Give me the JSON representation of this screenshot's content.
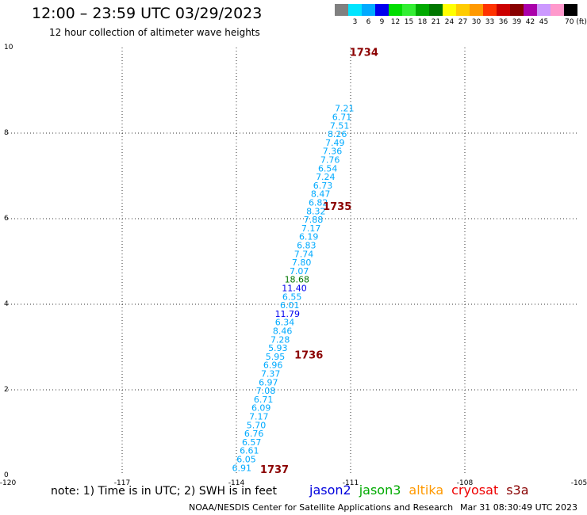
{
  "header": {
    "title": "12:00 – 23:59 UTC 03/29/2023",
    "subtitle": "12 hour collection of altimeter wave heights"
  },
  "legend": {
    "unit": "70 (ft)",
    "bins": [
      {
        "label": "",
        "color": "#808080"
      },
      {
        "label": "3",
        "color": "#00e5ff"
      },
      {
        "label": "6",
        "color": "#00aaff"
      },
      {
        "label": "9",
        "color": "#0000ee"
      },
      {
        "label": "12",
        "color": "#00dd00"
      },
      {
        "label": "15",
        "color": "#33ee33"
      },
      {
        "label": "18",
        "color": "#00aa00"
      },
      {
        "label": "21",
        "color": "#007700"
      },
      {
        "label": "24",
        "color": "#ffff00"
      },
      {
        "label": "27",
        "color": "#ffcc00"
      },
      {
        "label": "30",
        "color": "#ff9900"
      },
      {
        "label": "33",
        "color": "#ff3300"
      },
      {
        "label": "36",
        "color": "#cc0000"
      },
      {
        "label": "39",
        "color": "#880000"
      },
      {
        "label": "42",
        "color": "#aa00aa"
      },
      {
        "label": "45",
        "color": "#cc99ff"
      },
      {
        "label": "",
        "color": "#ff99cc"
      },
      {
        "label": "",
        "color": "#000000"
      }
    ]
  },
  "chart_data": {
    "type": "scatter",
    "title": "12:00 – 23:59 UTC 03/29/2023",
    "xlim": [
      -120,
      -105
    ],
    "ylim": [
      0,
      10
    ],
    "xticks": [
      "-120",
      "-117",
      "-114",
      "-111",
      "-108",
      "-105"
    ],
    "yticks": [
      "0",
      "2",
      "4",
      "6",
      "8",
      "10"
    ],
    "grid": true,
    "colors": {
      "cyan": "#00aaff",
      "blue": "#0000ee",
      "green": "#007700",
      "time": "#8b0000"
    },
    "points": [
      {
        "lon": -113.86,
        "lat": 0.18,
        "v": "6.91",
        "c": "cyan"
      },
      {
        "lon": -113.74,
        "lat": 0.38,
        "v": "6.05",
        "c": "cyan"
      },
      {
        "lon": -113.66,
        "lat": 0.58,
        "v": "6.61",
        "c": "cyan"
      },
      {
        "lon": -113.6,
        "lat": 0.78,
        "v": "6.57",
        "c": "cyan"
      },
      {
        "lon": -113.54,
        "lat": 0.98,
        "v": "6.76",
        "c": "cyan"
      },
      {
        "lon": -113.48,
        "lat": 1.18,
        "v": "5.70",
        "c": "cyan"
      },
      {
        "lon": -113.41,
        "lat": 1.38,
        "v": "7.17",
        "c": "cyan"
      },
      {
        "lon": -113.35,
        "lat": 1.58,
        "v": "6.09",
        "c": "cyan"
      },
      {
        "lon": -113.29,
        "lat": 1.78,
        "v": "6.71",
        "c": "cyan"
      },
      {
        "lon": -113.23,
        "lat": 1.98,
        "v": "7.08",
        "c": "cyan"
      },
      {
        "lon": -113.16,
        "lat": 2.18,
        "v": "6.97",
        "c": "cyan"
      },
      {
        "lon": -113.1,
        "lat": 2.38,
        "v": "7.37",
        "c": "cyan"
      },
      {
        "lon": -113.04,
        "lat": 2.58,
        "v": "6.96",
        "c": "cyan"
      },
      {
        "lon": -112.98,
        "lat": 2.78,
        "v": "5.95",
        "c": "cyan"
      },
      {
        "lon": -112.91,
        "lat": 2.98,
        "v": "5.93",
        "c": "cyan"
      },
      {
        "lon": -112.85,
        "lat": 3.18,
        "v": "7.28",
        "c": "cyan"
      },
      {
        "lon": -112.79,
        "lat": 3.38,
        "v": "8.46",
        "c": "cyan"
      },
      {
        "lon": -112.73,
        "lat": 3.58,
        "v": "6.34",
        "c": "cyan"
      },
      {
        "lon": -112.66,
        "lat": 3.78,
        "v": "11.79",
        "c": "blue"
      },
      {
        "lon": -112.6,
        "lat": 3.98,
        "v": "6.01",
        "c": "cyan"
      },
      {
        "lon": -112.54,
        "lat": 4.18,
        "v": "6.55",
        "c": "cyan"
      },
      {
        "lon": -112.48,
        "lat": 4.38,
        "v": "11.40",
        "c": "blue"
      },
      {
        "lon": -112.41,
        "lat": 4.58,
        "v": "18.68",
        "c": "green"
      },
      {
        "lon": -112.35,
        "lat": 4.78,
        "v": "7.07",
        "c": "cyan"
      },
      {
        "lon": -112.29,
        "lat": 4.98,
        "v": "7.80",
        "c": "cyan"
      },
      {
        "lon": -112.23,
        "lat": 5.18,
        "v": "7.74",
        "c": "cyan"
      },
      {
        "lon": -112.16,
        "lat": 5.38,
        "v": "6.83",
        "c": "cyan"
      },
      {
        "lon": -112.1,
        "lat": 5.58,
        "v": "6.19",
        "c": "cyan"
      },
      {
        "lon": -112.04,
        "lat": 5.78,
        "v": "7.17",
        "c": "cyan"
      },
      {
        "lon": -111.98,
        "lat": 5.98,
        "v": "7.88",
        "c": "cyan"
      },
      {
        "lon": -111.91,
        "lat": 6.18,
        "v": "8.32",
        "c": "cyan"
      },
      {
        "lon": -111.85,
        "lat": 6.38,
        "v": "6.82",
        "c": "cyan"
      },
      {
        "lon": -111.79,
        "lat": 6.58,
        "v": "8.47",
        "c": "cyan"
      },
      {
        "lon": -111.73,
        "lat": 6.78,
        "v": "6.73",
        "c": "cyan"
      },
      {
        "lon": -111.66,
        "lat": 6.98,
        "v": "7.24",
        "c": "cyan"
      },
      {
        "lon": -111.6,
        "lat": 7.18,
        "v": "6.54",
        "c": "cyan"
      },
      {
        "lon": -111.54,
        "lat": 7.38,
        "v": "7.76",
        "c": "cyan"
      },
      {
        "lon": -111.48,
        "lat": 7.58,
        "v": "7.36",
        "c": "cyan"
      },
      {
        "lon": -111.41,
        "lat": 7.78,
        "v": "7.49",
        "c": "cyan"
      },
      {
        "lon": -111.35,
        "lat": 7.98,
        "v": "8.26",
        "c": "cyan"
      },
      {
        "lon": -111.29,
        "lat": 8.18,
        "v": "7.51",
        "c": "cyan"
      },
      {
        "lon": -111.23,
        "lat": 8.38,
        "v": "6.71",
        "c": "cyan"
      },
      {
        "lon": -111.16,
        "lat": 8.58,
        "v": "7.21",
        "c": "cyan"
      }
    ],
    "time_labels": [
      {
        "lon": -113.0,
        "lat": 0.15,
        "t": "1737"
      },
      {
        "lon": -112.1,
        "lat": 2.82,
        "t": "1736"
      },
      {
        "lon": -111.35,
        "lat": 6.3,
        "t": "1735"
      },
      {
        "lon": -110.65,
        "lat": 9.9,
        "t": "1734"
      }
    ]
  },
  "footer": {
    "note": "note: 1) Time is in UTC; 2) SWH is in feet",
    "satellites": [
      {
        "name": "jason2",
        "color": "#0000dd"
      },
      {
        "name": "jason3",
        "color": "#00aa00"
      },
      {
        "name": "altika",
        "color": "#ff9900"
      },
      {
        "name": "cryosat",
        "color": "#ee0000"
      },
      {
        "name": "s3a",
        "color": "#880000"
      }
    ],
    "credit": "NOAA/NESDIS Center for Satellite Applications and Research",
    "timestamp": "Mar 31 08:30:49 UTC 2023"
  }
}
